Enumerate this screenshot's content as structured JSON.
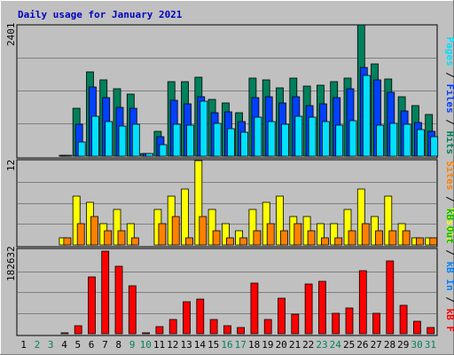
{
  "chart_data": {
    "type": "bar",
    "title": "Daily usage for January 2021",
    "categories": [
      "1",
      "2",
      "3",
      "4",
      "5",
      "6",
      "7",
      "8",
      "9",
      "10",
      "11",
      "12",
      "13",
      "14",
      "15",
      "16",
      "17",
      "18",
      "19",
      "20",
      "21",
      "22",
      "23",
      "24",
      "25",
      "26",
      "27",
      "28",
      "29",
      "30",
      "31"
    ],
    "weekend_days": [
      2,
      3,
      9,
      10,
      16,
      17,
      23,
      24,
      30,
      31
    ],
    "colors": {
      "hits": "#00805c",
      "files": "#0040ff",
      "pages": "#00e0ff",
      "visits": "#ffff00",
      "sites": "#ff8000",
      "kbin": "#0080ff",
      "kbout": "#00c000",
      "kbf": "#ff0000",
      "weekday_label": "#000000",
      "weekend_label": "#00805c",
      "title": "#0000c0"
    },
    "panels": [
      {
        "id": "top",
        "max_label": "2401",
        "ymax": 2401,
        "legend": [
          {
            "text": "Hits",
            "color": "#00805c"
          },
          {
            "text": "Files",
            "color": "#0040ff"
          },
          {
            "text": "Pages",
            "color": "#00e0ff"
          }
        ],
        "series": [
          {
            "name": "Hits",
            "color": "#00805c",
            "values": [
              0,
              0,
              0,
              20,
              875,
              1540,
              1390,
              1225,
              1140,
              45,
              455,
              1370,
              1360,
              1440,
              1040,
              975,
              790,
              1420,
              1390,
              1250,
              1420,
              1285,
              1290,
              1370,
              1425,
              2401,
              1680,
              1410,
              1080,
              920,
              760
            ]
          },
          {
            "name": "Files",
            "color": "#0040ff",
            "values": [
              0,
              0,
              0,
              20,
              590,
              1265,
              1070,
              895,
              875,
              45,
              355,
              1025,
              955,
              1095,
              800,
              815,
              625,
              1075,
              1085,
              975,
              1085,
              920,
              950,
              1070,
              1225,
              1615,
              1390,
              1170,
              835,
              610,
              455
            ]
          },
          {
            "name": "Pages",
            "color": "#00e0ff",
            "values": [
              0,
              0,
              0,
              20,
              260,
              730,
              625,
              555,
              585,
              45,
              205,
              585,
              575,
              1010,
              600,
              505,
              435,
              715,
              640,
              590,
              725,
              715,
              635,
              570,
              645,
              1480,
              570,
              595,
              590,
              490,
              365
            ]
          }
        ]
      },
      {
        "id": "middle",
        "max_label": "12",
        "ymax": 12,
        "legend": [
          {
            "text": "Visits",
            "color": "#ffff00"
          },
          {
            "text": "Sites",
            "color": "#ff8000"
          }
        ],
        "series": [
          {
            "name": "Visits",
            "color": "#ffff00",
            "values": [
              0,
              0,
              0,
              1,
              7,
              6,
              3,
              5,
              3,
              0,
              5,
              7,
              8,
              12,
              5,
              3,
              2,
              5,
              6,
              7,
              4,
              4,
              3,
              3,
              5,
              8,
              4,
              7,
              3,
              1,
              1
            ]
          },
          {
            "name": "Sites",
            "color": "#ff8000",
            "values": [
              0,
              0,
              0,
              1,
              3,
              4,
              2,
              2,
              1,
              0,
              3,
              4,
              1,
              4,
              2,
              1,
              1,
              2,
              3,
              2,
              3,
              2,
              1,
              1,
              2,
              3,
              2,
              2,
              2,
              1,
              1
            ]
          }
        ]
      },
      {
        "id": "bottom",
        "max_label": "182632",
        "ymax": 182632,
        "legend": [
          {
            "text": "kB F",
            "color": "#ff0000"
          },
          {
            "text": "kB In",
            "color": "#0080ff"
          },
          {
            "text": "kB Out",
            "color": "#00c000"
          }
        ],
        "series": [
          {
            "name": "kB F",
            "color": "#ff0000",
            "values": [
              0,
              0,
              0,
              2000,
              18000,
              124000,
              180000,
              148000,
              105000,
              2000,
              15000,
              32000,
              70000,
              75000,
              32000,
              18000,
              14000,
              110000,
              32000,
              78000,
              42000,
              108000,
              114000,
              44000,
              56000,
              138000,
              44000,
              160000,
              62000,
              28000,
              14000
            ]
          }
        ]
      }
    ]
  }
}
